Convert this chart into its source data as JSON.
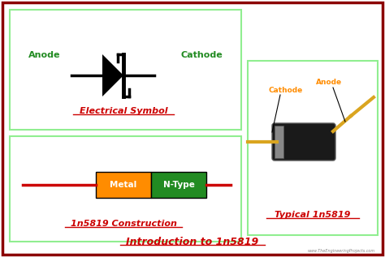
{
  "bg_color": "#ffffff",
  "border_color": "#8B0000",
  "panel_border_color": "#90EE90",
  "title_text": "Introduction to 1n5819",
  "title_color": "#cc0000",
  "title_fontsize": 9,
  "watermark": "www.TheEngineeringProjects.com",
  "watermark_color": "#888888",
  "electrical_symbol_label": "Electrical Symbol",
  "construction_label": "1n5819 Construction",
  "typical_label": "Typical 1n5819",
  "anode_color": "#228B22",
  "cathode_color": "#228B22",
  "orange_label_color": "#FF8C00",
  "label_color_red": "#cc0000",
  "metal_color": "#FF8C00",
  "ntype_color": "#228B22",
  "wire_color": "#cc0000",
  "diode_body_color": "#1a1a1a",
  "diode_band_color": "#888888",
  "lead_color": "#DAA520"
}
